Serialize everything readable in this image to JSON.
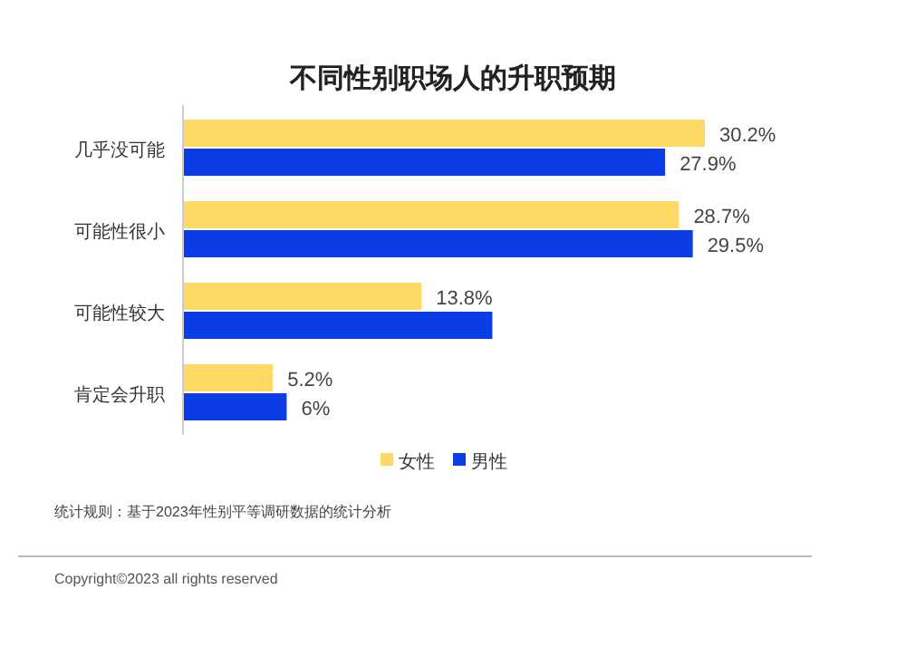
{
  "chart_data": {
    "type": "bar",
    "orientation": "horizontal",
    "title": "不同性别职场人的升职预期",
    "categories": [
      "几乎没可能",
      "可能性很小",
      "可能性较大",
      "肯定会升职"
    ],
    "series": [
      {
        "name": "女性",
        "color": "#ffd966",
        "values": [
          30.2,
          28.7,
          13.8,
          5.2
        ],
        "value_labels": [
          "30.2%",
          "28.7%",
          "13.8%",
          "5.2%"
        ]
      },
      {
        "name": "男性",
        "color": "#0a3de6",
        "values": [
          27.9,
          29.5,
          17.9,
          6
        ],
        "value_labels": [
          "27.9%",
          "29.5%",
          null,
          "6%"
        ]
      }
    ],
    "legend": "bottom",
    "annotations": [
      "统计规则：基于2023年性别平等调研数据的统计分析",
      "Copyright©2023 all rights reserved"
    ]
  }
}
